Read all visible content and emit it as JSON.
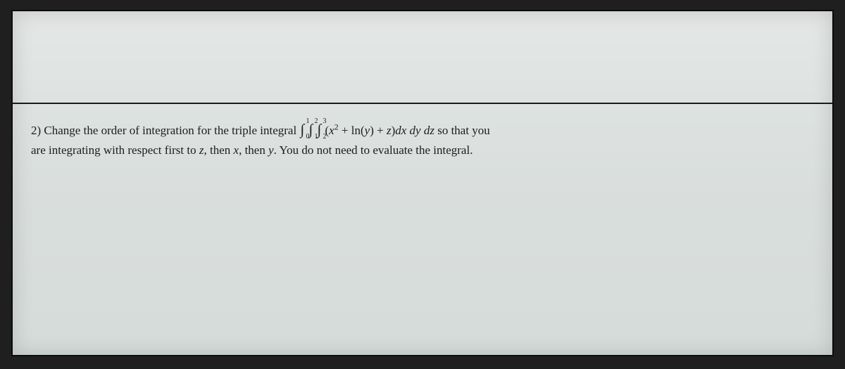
{
  "page": {
    "background_gradient_top": "#e4e7e6",
    "background_gradient_bottom": "#d6dcda",
    "frame_color": "#1f1f1f",
    "divider_color": "#1a1a1a",
    "text_color": "#1c1c1c",
    "font_family": "Times New Roman",
    "font_size_pt": 13
  },
  "problem": {
    "number": "2)",
    "lead_in": "Change the order of integration for the triple integral",
    "integral": {
      "outer": {
        "from": "0",
        "to": "1",
        "var": "z"
      },
      "middle": {
        "from": "1",
        "to": "2",
        "var": "y"
      },
      "inner": {
        "from": "2",
        "to": "3",
        "var": "x"
      },
      "integrand_text": "(x² + ln(y) + z)",
      "differentials_order": "dx dy dz"
    },
    "tail_1": "so that you",
    "line2_a": "are integrating with respect first to",
    "seq_z": "z",
    "comma_then1": ", then",
    "seq_x": "x",
    "comma_then2": ", then",
    "seq_y": "y",
    "line2_b": ". You do not need to evaluate the integral."
  }
}
